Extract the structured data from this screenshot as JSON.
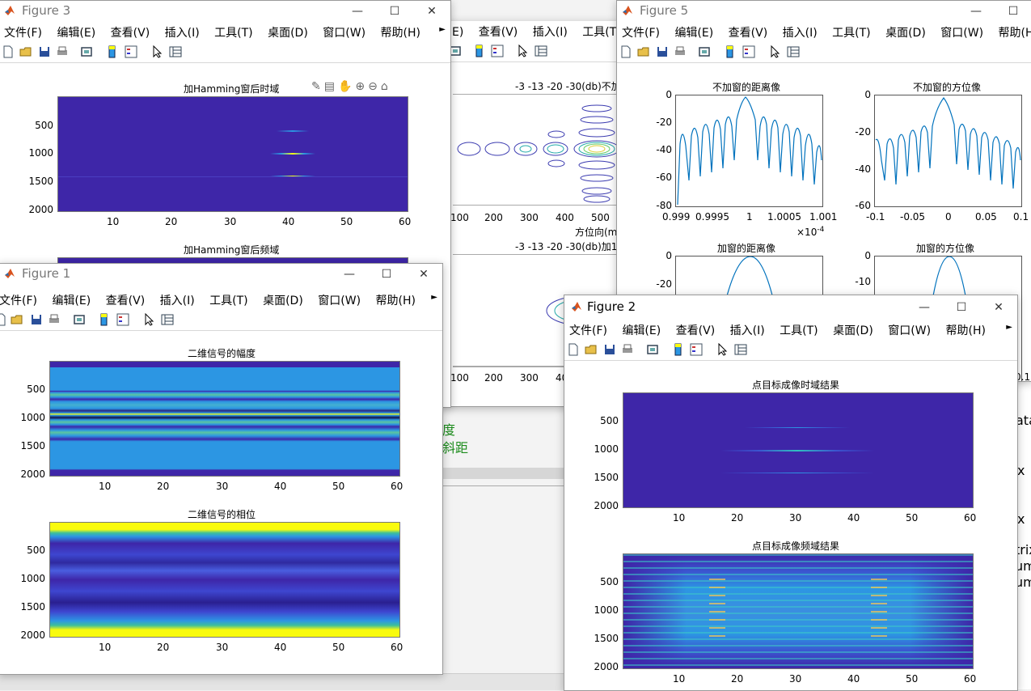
{
  "menus": [
    "文件(F)",
    "编辑(E)",
    "查看(V)",
    "插入(I)",
    "工具(T)",
    "桌面(D)",
    "窗口(W)",
    "帮助(H)"
  ],
  "figure3": {
    "title": "Figure 3",
    "plot1_title": "加Hamming窗后时域",
    "plot2_title": "加Hamming窗后频域",
    "yticks": [
      "500",
      "1000",
      "1500",
      "2000"
    ],
    "xticks": [
      "10",
      "20",
      "30",
      "40",
      "50",
      "60"
    ]
  },
  "figure4_partial": {
    "menus": [
      "E)",
      "查看(V)",
      "插入(I)",
      "工具(T"
    ],
    "plot1_title": "-3 -13 -20 -30(db)不加",
    "plot2_title": "-3 -13 -20 -30(db)加1",
    "xlabel": "方位向(m",
    "xticks": [
      "100",
      "200",
      "300",
      "400",
      "500"
    ],
    "xticks2": [
      "100",
      "200",
      "300",
      "40"
    ]
  },
  "figure5": {
    "title": "Figure 5",
    "menus": [
      "文件(F)",
      "编辑(E)",
      "查看(V)",
      "插入(I)",
      "工具(T)",
      "桌面(D)",
      "窗口(W)",
      "帮助(H"
    ],
    "p1_title": "不加窗的距离像",
    "p2_title": "不加窗的方位像",
    "p3_title": "加窗的距离像",
    "p4_title": "加窗的方位像",
    "p1_yticks": [
      "0",
      "-20",
      "-40",
      "-60",
      "-80"
    ],
    "p1_xticks": [
      "0.999",
      "0.9995",
      "1",
      "1.0005",
      "1.001"
    ],
    "p1_exponent": "×10",
    "p1_exponent_power": "-4",
    "p2_yticks": [
      "0",
      "-20",
      "-40",
      "-60"
    ],
    "p2_xticks": [
      "-0.1",
      "-0.05",
      "0",
      "0.05",
      "0.1"
    ],
    "p3_yticks": [
      "0",
      "-20"
    ],
    "p4_yticks": [
      "0",
      "-10"
    ],
    "edge_label": "0.1"
  },
  "figure1": {
    "title": "Figure 1",
    "plot1_title": "二维信号的幅度",
    "plot2_title": "二维信号的相位",
    "yticks": [
      "500",
      "1000",
      "1500",
      "2000"
    ],
    "xticks": [
      "10",
      "20",
      "30",
      "40",
      "50",
      "60"
    ]
  },
  "figure2": {
    "title": "Figure 2",
    "plot1_title": "点目标成像时域结果",
    "plot2_title": "点目标成像频域结果",
    "yticks": [
      "500",
      "1000",
      "1500",
      "2000"
    ],
    "xticks": [
      "10",
      "20",
      "30",
      "40",
      "50",
      "60"
    ]
  },
  "background_text": {
    "t1": "度",
    "t2": "斜距",
    "r1": "ata",
    "r2": "x",
    "r3": "x",
    "r4": "trix",
    "r5": "um",
    "r6": "um"
  },
  "colors": {
    "parula_bg": "#3e26a8",
    "parula_cyan": "#2c96e3",
    "parula_yellow": "#f9fb0e",
    "line_blue": "#0072bd",
    "menu_green": "#1c8c1c"
  }
}
